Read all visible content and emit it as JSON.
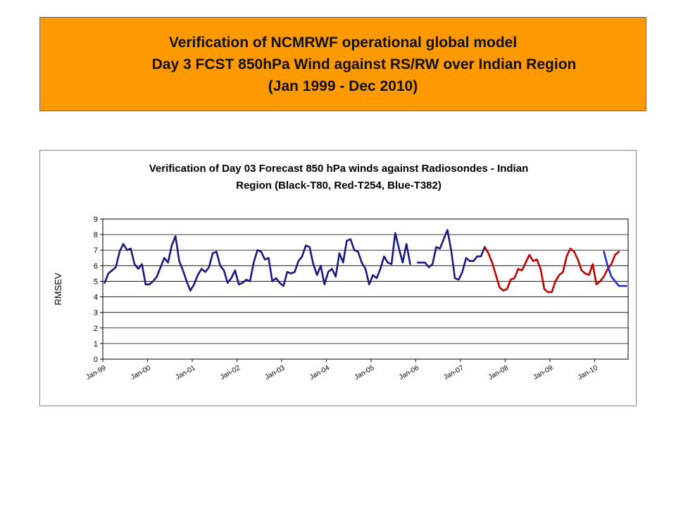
{
  "header": {
    "title_lines": [
      "Verification of NCMRWF operational global model",
      "Day 3 FCST  850hPa Wind against RS/RW over Indian Region",
      "(Jan 1999 - Dec 2010)"
    ]
  },
  "chart_data": {
    "type": "line",
    "title_lines": [
      "Verification of Day 03 Forecast  850 hPa winds against Radiosondes - Indian",
      "Region (Black-T80, Red-T254, Blue-T382)"
    ],
    "xlabel": "",
    "ylabel": "RMSEV",
    "ylim": [
      0,
      9
    ],
    "yticks": [
      0,
      1,
      2,
      3,
      4,
      5,
      6,
      7,
      8,
      9
    ],
    "x_start_month": "Jan-99",
    "x_months_total": 141,
    "xtick_labels": [
      "Jan-99",
      "Jan-00",
      "Jan-01",
      "Jan-02",
      "Jan-03",
      "Jan-04",
      "Jan-05",
      "Jan-06",
      "Jan-07",
      "Jan-08",
      "Jan-09",
      "Jan-10"
    ],
    "grid": "horizontal",
    "legend": "none",
    "series": [
      {
        "color": "#1a1a80",
        "segments": [
          {
            "start": 0,
            "values": [
              4.9,
              5.5,
              5.7,
              5.9,
              6.9,
              7.4,
              7.0,
              7.1,
              6.1,
              5.8,
              6.1,
              4.8,
              4.8,
              5.0,
              5.3,
              5.9,
              6.5,
              6.2,
              7.3,
              7.9,
              6.3,
              5.7,
              5.0,
              4.4,
              4.8,
              5.4,
              5.8,
              5.6,
              5.9,
              6.8,
              6.9,
              6.0,
              5.7,
              4.9,
              5.2,
              5.7,
              4.8,
              4.9,
              5.1,
              5.0,
              6.2,
              7.0,
              6.9,
              6.4,
              6.5,
              5.0,
              5.2,
              4.9,
              4.7,
              5.6,
              5.5,
              5.6,
              6.3,
              6.6,
              7.3,
              7.2,
              6.1,
              5.4,
              6.0,
              4.8,
              5.6,
              5.8,
              5.3,
              6.8,
              6.2,
              7.6,
              7.7,
              7.0,
              6.9,
              6.2,
              5.8,
              4.8,
              5.4,
              5.2,
              5.8,
              6.6,
              6.2,
              6.1,
              8.1,
              7.1,
              6.2,
              7.4,
              6.1
            ]
          },
          {
            "start": 84,
            "values": [
              6.2,
              6.2,
              6.2,
              5.9,
              6.1,
              7.2,
              7.1,
              7.7,
              8.3,
              7.0,
              5.2,
              5.1,
              5.6,
              6.5,
              6.3,
              6.3,
              6.6,
              6.6,
              7.2
            ]
          }
        ]
      },
      {
        "color": "#c00000",
        "segments": [
          {
            "start": 102,
            "values": [
              7.2,
              6.8,
              6.2,
              5.4,
              4.6,
              4.4,
              4.5,
              5.1,
              5.2,
              5.8,
              5.7,
              6.2,
              6.7,
              6.3,
              6.4,
              5.8,
              4.5,
              4.3,
              4.3,
              5.0,
              5.4,
              5.6,
              6.6,
              7.1,
              6.9,
              6.4,
              5.7,
              5.5,
              5.4,
              6.1,
              4.8,
              5.0,
              5.3,
              5.8,
              6.1,
              6.7,
              6.9
            ]
          }
        ]
      },
      {
        "color": "#1f2fd0",
        "segments": [
          {
            "start": 134,
            "values": [
              6.9,
              6.0,
              5.3,
              5.0,
              4.7,
              4.7,
              4.7
            ]
          }
        ]
      }
    ]
  }
}
